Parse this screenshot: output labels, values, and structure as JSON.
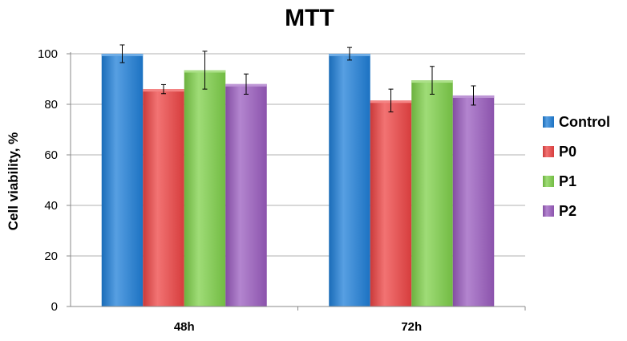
{
  "chart_data": {
    "type": "bar",
    "title": "MTT",
    "xlabel": "",
    "ylabel": "Cell viability, %",
    "ylim": [
      0,
      100
    ],
    "yticks": [
      0,
      20,
      40,
      60,
      80,
      100
    ],
    "grid": true,
    "legend_position": "right",
    "categories": [
      "48h",
      "72h"
    ],
    "series": [
      {
        "name": "Control",
        "color": "#1f7fd8",
        "values": [
          100,
          100
        ],
        "errors": [
          3.5,
          2.5
        ]
      },
      {
        "name": "P0",
        "color": "#ee4444",
        "values": [
          86,
          81.5
        ],
        "errors": [
          1.8,
          4.5
        ]
      },
      {
        "name": "P1",
        "color": "#7fd04a",
        "values": [
          93.5,
          89.5
        ],
        "errors": [
          7.5,
          5.5
        ]
      },
      {
        "name": "P2",
        "color": "#9a5cbf",
        "values": [
          88,
          83.5
        ],
        "errors": [
          4,
          3.8
        ]
      }
    ]
  }
}
